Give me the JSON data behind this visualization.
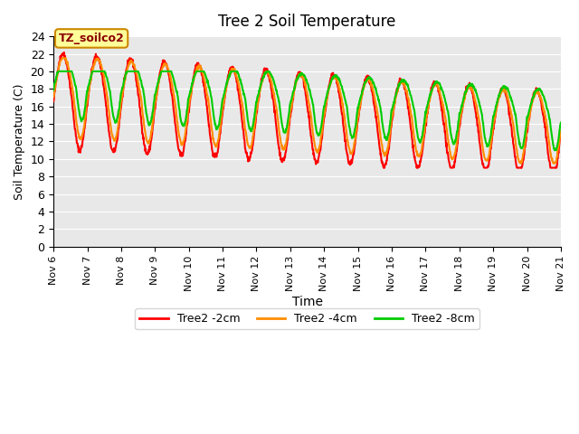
{
  "title": "Tree 2 Soil Temperature",
  "xlabel": "Time",
  "ylabel": "Soil Temperature (C)",
  "xlim": [
    0,
    15
  ],
  "ylim": [
    0,
    24
  ],
  "yticks": [
    0,
    2,
    4,
    6,
    8,
    10,
    12,
    14,
    16,
    18,
    20,
    22,
    24
  ],
  "xtick_labels": [
    "Nov 6",
    "Nov 7",
    "Nov 8",
    "Nov 9",
    "Nov 10",
    "Nov 11",
    "Nov 12",
    "Nov 13",
    "Nov 14",
    "Nov 15",
    "Nov 16",
    "Nov 17",
    "Nov 18",
    "Nov 19",
    "Nov 20",
    "Nov 21"
  ],
  "xtick_positions": [
    0,
    1,
    2,
    3,
    4,
    5,
    6,
    7,
    8,
    9,
    10,
    11,
    12,
    13,
    14,
    15
  ],
  "color_2cm": "#FF0000",
  "color_4cm": "#FF8C00",
  "color_8cm": "#00CC00",
  "legend_label_2cm": "Tree2 -2cm",
  "legend_label_4cm": "Tree2 -4cm",
  "legend_label_8cm": "Tree2 -8cm",
  "annotation_text": "TZ_soilco2",
  "bg_color": "#E8E8E8",
  "line_width": 1.5
}
